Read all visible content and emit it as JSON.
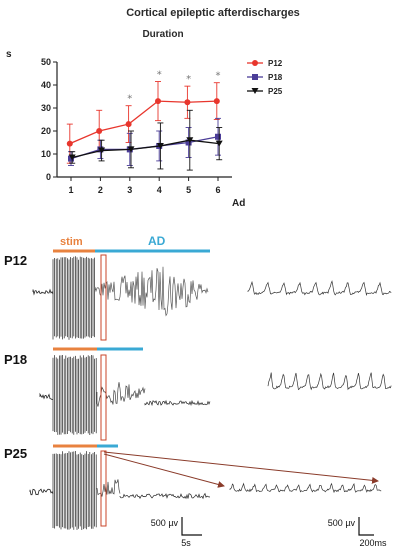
{
  "figure": {
    "title": "Cortical epileptic afterdischarges",
    "subtitle": "Duration"
  },
  "chart_data": {
    "type": "line",
    "title": "Duration",
    "xlabel": "Ad",
    "ylabel": "s",
    "x": [
      1,
      2,
      3,
      4,
      5,
      6
    ],
    "xticks": [
      "1",
      "2",
      "3",
      "4",
      "5",
      "6"
    ],
    "yticks": [
      "0",
      "10",
      "20",
      "30",
      "40",
      "50"
    ],
    "ylim": [
      0,
      50
    ],
    "legend_position": "top-right",
    "significance": [
      "",
      "",
      "*",
      "*",
      "*",
      "*"
    ],
    "series": [
      {
        "name": "P12",
        "color": "#e8362d",
        "marker": "circle",
        "values": [
          14.5,
          20,
          23,
          33,
          32.5,
          33
        ],
        "err": [
          8.5,
          9,
          8,
          8.5,
          7,
          8
        ]
      },
      {
        "name": "P18",
        "color": "#4b3d98",
        "marker": "square",
        "values": [
          8,
          12,
          12,
          13.5,
          15,
          17.5
        ],
        "err": [
          3,
          4,
          7,
          6.5,
          6.5,
          8
        ]
      },
      {
        "name": "P25",
        "color": "#111111",
        "marker": "triangle-down",
        "values": [
          8.5,
          11.5,
          12,
          13.5,
          16,
          14.5
        ],
        "err": [
          2.5,
          4.5,
          8,
          10,
          13,
          7
        ]
      }
    ]
  },
  "traces": {
    "stim_label": "stim",
    "ad_label": "AD",
    "stim_color": "#e8823f",
    "ad_color": "#3aa9d4",
    "rows": [
      {
        "label": "P12"
      },
      {
        "label": "P18"
      },
      {
        "label": "P25"
      }
    ],
    "scale_left": {
      "voltage": "500 µv",
      "time": "5s"
    },
    "scale_right": {
      "voltage": "500 µv",
      "time": "200ms"
    }
  }
}
